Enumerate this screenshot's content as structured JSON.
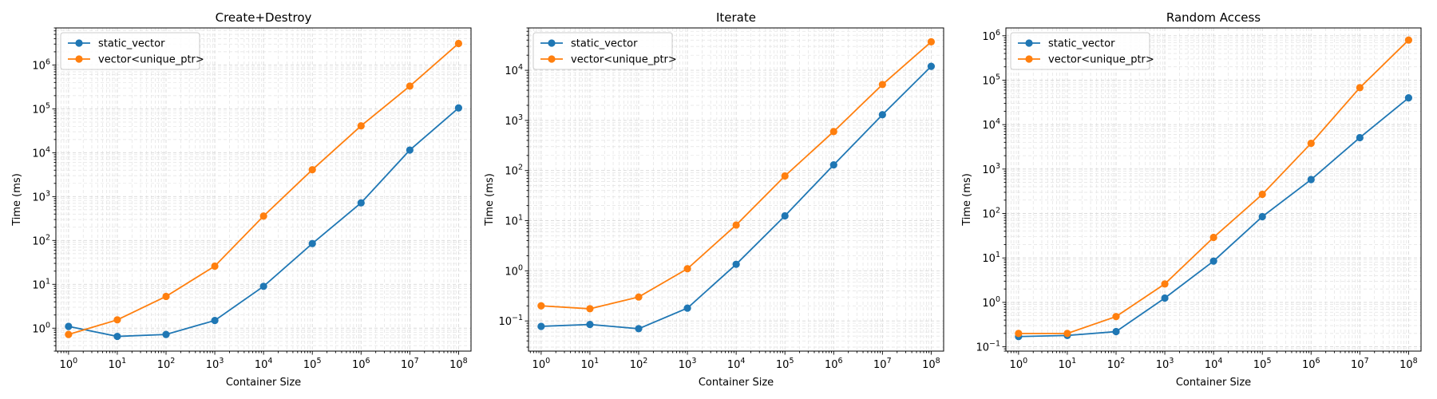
{
  "chart_data": [
    {
      "type": "line",
      "title": "Create+Destroy",
      "xlabel": "Container Size",
      "ylabel": "Time (ms)",
      "xscale": "log",
      "yscale": "log",
      "x": [
        1,
        10,
        100,
        1000,
        10000,
        100000,
        1000000,
        10000000,
        100000000
      ],
      "xlim": [
        0.55,
        180000000
      ],
      "ylim": [
        0.3,
        7000000
      ],
      "x_tick_labels": [
        "10^0",
        "10^1",
        "10^2",
        "10^3",
        "10^4",
        "10^5",
        "10^6",
        "10^7",
        "10^8"
      ],
      "y_tick_values": [
        1,
        10,
        100,
        1000,
        10000,
        100000,
        1000000
      ],
      "y_tick_labels": [
        "10^0",
        "10^1",
        "10^2",
        "10^3",
        "10^4",
        "10^5",
        "10^6"
      ],
      "grid": true,
      "legend": "top-left",
      "series": [
        {
          "name": "static_vector",
          "color": "#1f77b4",
          "values": [
            1.1,
            0.65,
            0.72,
            1.5,
            9,
            85,
            720,
            11500,
            105000
          ]
        },
        {
          "name": "vector<unique_ptr>",
          "color": "#ff7f0e",
          "values": [
            0.72,
            1.55,
            5.3,
            26,
            360,
            4100,
            41000,
            330000,
            3100000
          ]
        }
      ]
    },
    {
      "type": "line",
      "title": "Iterate",
      "xlabel": "Container Size",
      "ylabel": "Time (ms)",
      "xscale": "log",
      "yscale": "log",
      "x": [
        1,
        10,
        100,
        1000,
        10000,
        100000,
        1000000,
        10000000,
        100000000
      ],
      "xlim": [
        0.55,
        180000000
      ],
      "ylim": [
        0.025,
        70000
      ],
      "x_tick_labels": [
        "10^0",
        "10^1",
        "10^2",
        "10^3",
        "10^4",
        "10^5",
        "10^6",
        "10^7",
        "10^8"
      ],
      "y_tick_values": [
        0.1,
        1,
        10,
        100,
        1000,
        10000
      ],
      "y_tick_labels": [
        "10^-1",
        "10^0",
        "10^1",
        "10^2",
        "10^3",
        "10^4"
      ],
      "grid": true,
      "legend": "top-left",
      "series": [
        {
          "name": "static_vector",
          "color": "#1f77b4",
          "values": [
            0.078,
            0.085,
            0.07,
            0.18,
            1.35,
            12.5,
            130,
            1300,
            12000
          ]
        },
        {
          "name": "vector<unique_ptr>",
          "color": "#ff7f0e",
          "values": [
            0.2,
            0.175,
            0.3,
            1.1,
            8.2,
            78,
            600,
            5200,
            37000
          ]
        }
      ]
    },
    {
      "type": "line",
      "title": "Random Access",
      "xlabel": "Container Size",
      "ylabel": "Time (ms)",
      "xscale": "log",
      "yscale": "log",
      "x": [
        1,
        10,
        100,
        1000,
        10000,
        100000,
        1000000,
        10000000,
        100000000
      ],
      "xlim": [
        0.55,
        180000000
      ],
      "ylim": [
        0.08,
        1500000
      ],
      "x_tick_labels": [
        "10^0",
        "10^1",
        "10^2",
        "10^3",
        "10^4",
        "10^5",
        "10^6",
        "10^7",
        "10^8"
      ],
      "y_tick_values": [
        0.1,
        1,
        10,
        100,
        1000,
        10000,
        100000,
        1000000
      ],
      "y_tick_labels": [
        "10^-1",
        "10^0",
        "10^1",
        "10^2",
        "10^3",
        "10^4",
        "10^5",
        "10^6"
      ],
      "grid": true,
      "legend": "top-left",
      "series": [
        {
          "name": "static_vector",
          "color": "#1f77b4",
          "values": [
            0.17,
            0.18,
            0.22,
            1.25,
            8.5,
            85,
            580,
            5100,
            40000
          ]
        },
        {
          "name": "vector<unique_ptr>",
          "color": "#ff7f0e",
          "values": [
            0.2,
            0.2,
            0.48,
            2.6,
            29,
            270,
            3800,
            68000,
            800000
          ]
        }
      ]
    }
  ]
}
